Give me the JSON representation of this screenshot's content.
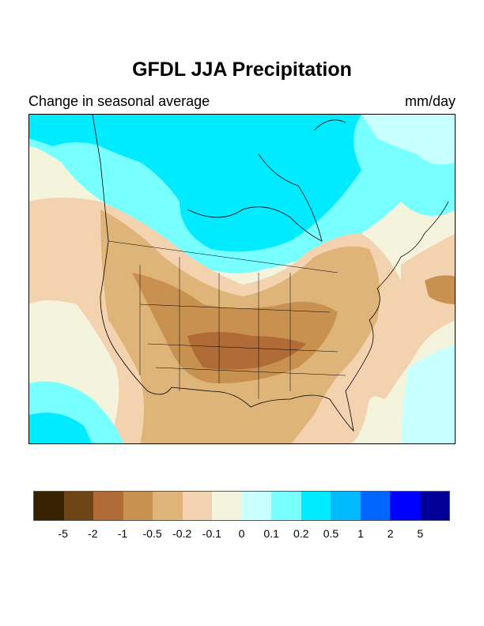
{
  "title": "GFDL JJA Precipitation",
  "subtitle_left": "Change in seasonal average",
  "units": "mm/day",
  "colorbar": {
    "colors": [
      "#362200",
      "#6e4616",
      "#b06b37",
      "#c89150",
      "#deb478",
      "#f3d2b0",
      "#f4f4dc",
      "#c8ffff",
      "#78ffff",
      "#00ebff",
      "#00bbff",
      "#0066ff",
      "#0000ff",
      "#000099"
    ],
    "labels": [
      "-5",
      "-2",
      "-1",
      "-0.5",
      "-0.2",
      "-0.1",
      "0",
      "0.1",
      "0.2",
      "0.5",
      "1",
      "2",
      "5"
    ]
  }
}
